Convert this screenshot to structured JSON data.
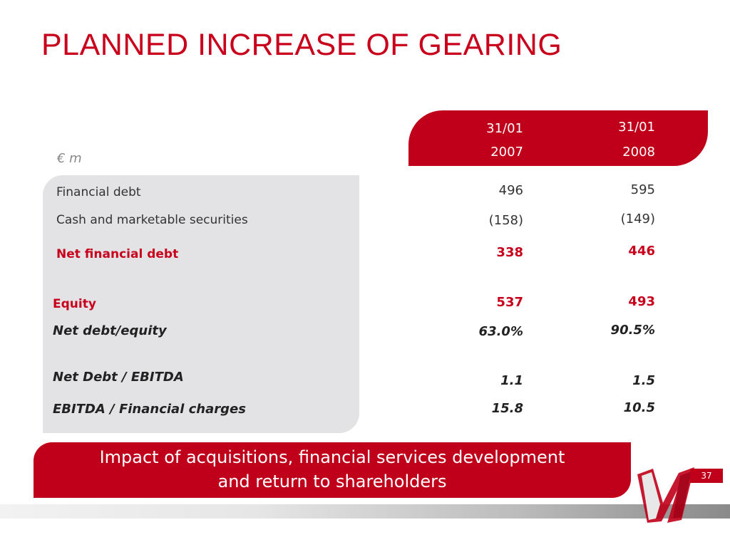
{
  "title": "PLANNED INCREASE OF GEARING",
  "unit_label": "€ m",
  "columns": [
    {
      "line1": "31/01",
      "line2": "2007"
    },
    {
      "line1": "31/01",
      "line2": "2008"
    }
  ],
  "rows": [
    {
      "label": "Financial debt",
      "values": [
        "496",
        "595"
      ]
    },
    {
      "label": "Cash and marketable securities",
      "values": [
        "(158)",
        "(149)"
      ]
    },
    {
      "label": "Net financial debt",
      "values": [
        "338",
        "446"
      ]
    },
    {
      "label": "Equity",
      "values": [
        "537",
        "493"
      ]
    },
    {
      "label": "Net debt/equity",
      "values": [
        "63.0%",
        "90.5%"
      ]
    },
    {
      "label": "Net Debt / EBITDA",
      "values": [
        "1.1",
        "1.5"
      ]
    },
    {
      "label": "EBITDA / Financial charges",
      "values": [
        "15.8",
        "10.5"
      ]
    }
  ],
  "banner": {
    "line1": "Impact of acquisitions, financial services development",
    "line2": "and return to shareholders"
  },
  "page_number": "37",
  "colors": {
    "accent": "#c0001a",
    "panel": "#e3e3e6"
  },
  "logo_icon": "n-ribbon-logo-icon"
}
